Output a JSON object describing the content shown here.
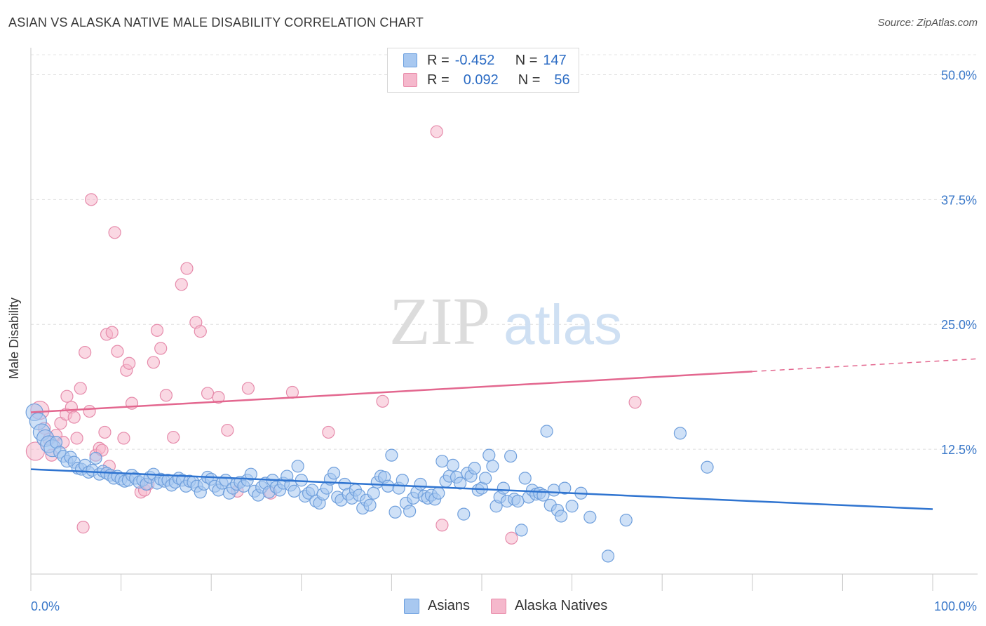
{
  "title": "ASIAN VS ALASKA NATIVE MALE DISABILITY CORRELATION CHART",
  "source": "Source: ZipAtlas.com",
  "watermark": {
    "zip": "ZIP",
    "atlas": "atlas"
  },
  "legend": {
    "rows": [
      {
        "r_label": "R =",
        "r_value": "-0.452",
        "n_label": "N =",
        "n_value": "147",
        "color": "#a8c8f0"
      },
      {
        "r_label": "R =",
        "r_value": "0.092",
        "n_label": "N =",
        "n_value": "56",
        "color": "#f5b8cc"
      }
    ]
  },
  "bottom_legend": {
    "asians": "Asians",
    "alaska": "Alaska Natives"
  },
  "chart_data": {
    "type": "scatter",
    "title": "ASIAN VS ALASKA NATIVE MALE DISABILITY CORRELATION CHART",
    "xlabel": "",
    "ylabel": "Male Disability",
    "xlim": [
      0,
      100
    ],
    "ylim": [
      0,
      52
    ],
    "x_tick_labels": [
      "0.0%",
      "100.0%"
    ],
    "y_ticks": [
      12.5,
      25.0,
      37.5,
      50.0
    ],
    "y_tick_labels": [
      "12.5%",
      "25.0%",
      "37.5%",
      "50.0%"
    ],
    "grid": true,
    "colors": {
      "asians": "#2f74d0",
      "asians_fill": "#a8c8f0",
      "alaska": "#e3678f",
      "alaska_fill": "#f5b8cc"
    },
    "series": [
      {
        "name": "Asians",
        "trend": {
          "x": [
            0,
            100
          ],
          "y": [
            10.5,
            6.5
          ],
          "dashed_from": null
        },
        "points": [
          [
            0.4,
            16.2
          ],
          [
            0.8,
            15.3
          ],
          [
            1.2,
            14.2
          ],
          [
            1.6,
            13.6
          ],
          [
            2.0,
            13.0
          ],
          [
            2.4,
            12.6
          ],
          [
            2.8,
            13.2
          ],
          [
            3.2,
            12.2
          ],
          [
            3.6,
            11.8
          ],
          [
            4.0,
            11.3
          ],
          [
            4.4,
            11.7
          ],
          [
            4.8,
            11.2
          ],
          [
            5.2,
            10.6
          ],
          [
            5.6,
            10.5
          ],
          [
            6.0,
            10.9
          ],
          [
            6.4,
            10.2
          ],
          [
            6.8,
            10.4
          ],
          [
            7.2,
            11.6
          ],
          [
            7.6,
            10.0
          ],
          [
            8.0,
            10.3
          ],
          [
            8.4,
            10.1
          ],
          [
            8.8,
            9.9
          ],
          [
            9.2,
            9.6
          ],
          [
            9.6,
            9.8
          ],
          [
            10.0,
            9.5
          ],
          [
            10.4,
            9.3
          ],
          [
            10.8,
            9.4
          ],
          [
            11.2,
            9.9
          ],
          [
            11.6,
            9.6
          ],
          [
            12.0,
            9.2
          ],
          [
            12.4,
            9.4
          ],
          [
            12.8,
            9.0
          ],
          [
            13.2,
            9.7
          ],
          [
            13.6,
            10.0
          ],
          [
            14.0,
            9.1
          ],
          [
            14.4,
            9.5
          ],
          [
            14.8,
            9.3
          ],
          [
            15.2,
            9.4
          ],
          [
            15.6,
            8.9
          ],
          [
            16.0,
            9.2
          ],
          [
            16.4,
            9.6
          ],
          [
            16.8,
            9.4
          ],
          [
            17.2,
            8.8
          ],
          [
            17.6,
            9.3
          ],
          [
            18.0,
            9.2
          ],
          [
            18.4,
            8.8
          ],
          [
            18.8,
            8.2
          ],
          [
            19.2,
            9.0
          ],
          [
            19.6,
            9.7
          ],
          [
            20.0,
            9.5
          ],
          [
            20.4,
            8.8
          ],
          [
            20.8,
            8.4
          ],
          [
            21.2,
            9.1
          ],
          [
            21.6,
            9.4
          ],
          [
            22.0,
            8.1
          ],
          [
            22.4,
            8.6
          ],
          [
            22.8,
            9.0
          ],
          [
            23.2,
            9.2
          ],
          [
            23.6,
            8.8
          ],
          [
            24.0,
            9.4
          ],
          [
            24.4,
            10.0
          ],
          [
            24.8,
            8.3
          ],
          [
            25.2,
            7.9
          ],
          [
            25.6,
            8.7
          ],
          [
            26.0,
            9.1
          ],
          [
            26.4,
            8.2
          ],
          [
            26.8,
            9.4
          ],
          [
            27.2,
            8.7
          ],
          [
            27.6,
            8.4
          ],
          [
            28.0,
            9.1
          ],
          [
            28.4,
            9.8
          ],
          [
            28.8,
            8.9
          ],
          [
            29.2,
            8.3
          ],
          [
            29.6,
            10.8
          ],
          [
            30.0,
            9.4
          ],
          [
            30.4,
            7.8
          ],
          [
            30.8,
            8.1
          ],
          [
            31.2,
            8.4
          ],
          [
            31.6,
            7.3
          ],
          [
            32.0,
            7.1
          ],
          [
            32.4,
            8.0
          ],
          [
            32.8,
            8.6
          ],
          [
            33.2,
            9.5
          ],
          [
            33.6,
            10.1
          ],
          [
            34.0,
            7.7
          ],
          [
            34.4,
            7.4
          ],
          [
            34.8,
            9.0
          ],
          [
            35.2,
            8.0
          ],
          [
            35.6,
            7.6
          ],
          [
            36.0,
            8.4
          ],
          [
            36.4,
            7.9
          ],
          [
            36.8,
            6.6
          ],
          [
            37.2,
            7.4
          ],
          [
            37.6,
            6.9
          ],
          [
            38.0,
            8.1
          ],
          [
            38.4,
            9.2
          ],
          [
            38.8,
            9.8
          ],
          [
            39.2,
            9.7
          ],
          [
            39.6,
            8.8
          ],
          [
            40.0,
            11.9
          ],
          [
            40.4,
            6.2
          ],
          [
            40.8,
            8.6
          ],
          [
            41.2,
            9.4
          ],
          [
            41.6,
            7.1
          ],
          [
            42.0,
            6.3
          ],
          [
            42.4,
            7.6
          ],
          [
            42.8,
            8.2
          ],
          [
            43.2,
            9.0
          ],
          [
            43.6,
            7.8
          ],
          [
            44.0,
            7.6
          ],
          [
            44.4,
            7.9
          ],
          [
            44.8,
            7.5
          ],
          [
            45.2,
            8.1
          ],
          [
            45.6,
            11.3
          ],
          [
            46.0,
            9.3
          ],
          [
            46.4,
            9.8
          ],
          [
            46.8,
            10.9
          ],
          [
            47.2,
            9.7
          ],
          [
            47.6,
            9.1
          ],
          [
            48.0,
            6.0
          ],
          [
            48.4,
            10.1
          ],
          [
            48.8,
            9.8
          ],
          [
            49.2,
            10.6
          ],
          [
            49.6,
            8.4
          ],
          [
            50.0,
            8.6
          ],
          [
            50.4,
            9.6
          ],
          [
            50.8,
            11.9
          ],
          [
            51.2,
            10.8
          ],
          [
            51.6,
            6.8
          ],
          [
            52.0,
            7.7
          ],
          [
            52.4,
            8.6
          ],
          [
            52.8,
            7.3
          ],
          [
            53.2,
            11.8
          ],
          [
            53.6,
            7.5
          ],
          [
            54.0,
            7.3
          ],
          [
            54.4,
            4.4
          ],
          [
            54.8,
            9.6
          ],
          [
            55.2,
            7.7
          ],
          [
            55.6,
            8.4
          ],
          [
            56.0,
            8.0
          ],
          [
            56.4,
            8.1
          ],
          [
            56.8,
            7.9
          ],
          [
            57.2,
            14.3
          ],
          [
            57.6,
            6.9
          ],
          [
            58.0,
            8.4
          ],
          [
            58.4,
            6.4
          ],
          [
            58.8,
            5.8
          ],
          [
            59.2,
            8.6
          ],
          [
            60.0,
            6.8
          ],
          [
            61.0,
            8.1
          ],
          [
            62.0,
            5.7
          ],
          [
            64.0,
            1.8
          ],
          [
            66.0,
            5.4
          ],
          [
            72.0,
            14.1
          ],
          [
            75.0,
            10.7
          ]
        ]
      },
      {
        "name": "Alaska Natives",
        "trend": {
          "x": [
            0,
            100
          ],
          "y": [
            16.2,
            21.3
          ],
          "dashed_from": 80
        },
        "points": [
          [
            0.5,
            12.3
          ],
          [
            1.0,
            16.4
          ],
          [
            1.5,
            14.6
          ],
          [
            2.0,
            13.5
          ],
          [
            2.3,
            11.9
          ],
          [
            2.8,
            13.9
          ],
          [
            3.3,
            15.1
          ],
          [
            3.6,
            13.2
          ],
          [
            3.9,
            16.0
          ],
          [
            4.0,
            17.8
          ],
          [
            4.5,
            16.7
          ],
          [
            4.8,
            15.7
          ],
          [
            5.1,
            13.6
          ],
          [
            5.5,
            18.6
          ],
          [
            5.8,
            4.7
          ],
          [
            6.0,
            22.2
          ],
          [
            6.5,
            16.3
          ],
          [
            6.7,
            37.5
          ],
          [
            7.2,
            11.9
          ],
          [
            7.6,
            12.6
          ],
          [
            7.9,
            12.4
          ],
          [
            8.2,
            14.2
          ],
          [
            8.4,
            24.0
          ],
          [
            8.7,
            10.8
          ],
          [
            9.0,
            24.2
          ],
          [
            9.3,
            34.2
          ],
          [
            9.6,
            22.3
          ],
          [
            10.3,
            13.6
          ],
          [
            10.6,
            20.4
          ],
          [
            10.9,
            21.1
          ],
          [
            11.2,
            17.1
          ],
          [
            12.2,
            8.2
          ],
          [
            12.6,
            8.4
          ],
          [
            13.0,
            9.0
          ],
          [
            13.6,
            21.2
          ],
          [
            14.0,
            24.4
          ],
          [
            14.4,
            22.6
          ],
          [
            15.0,
            17.9
          ],
          [
            15.8,
            13.7
          ],
          [
            16.7,
            29.0
          ],
          [
            17.3,
            30.6
          ],
          [
            18.3,
            25.2
          ],
          [
            18.8,
            24.3
          ],
          [
            19.6,
            18.1
          ],
          [
            20.8,
            17.7
          ],
          [
            21.8,
            14.4
          ],
          [
            22.9,
            8.3
          ],
          [
            24.1,
            18.6
          ],
          [
            26.6,
            8.1
          ],
          [
            29.0,
            18.2
          ],
          [
            33.0,
            14.2
          ],
          [
            39.0,
            17.3
          ],
          [
            45.0,
            44.3
          ],
          [
            45.6,
            4.9
          ],
          [
            53.3,
            3.6
          ],
          [
            67.0,
            17.2
          ]
        ]
      }
    ]
  }
}
